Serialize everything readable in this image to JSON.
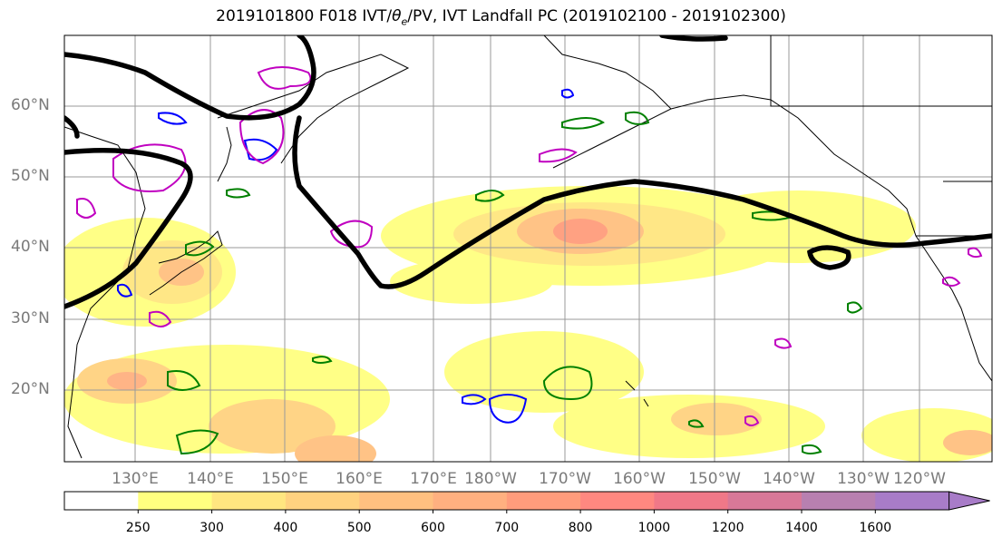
{
  "title": "2019101800 F018 IVT/θe/PV, IVT Landfall PC (2019102100 - 2019102300)",
  "map": {
    "lat_labels": [
      "60°N",
      "50°N",
      "40°N",
      "30°N",
      "20°N"
    ],
    "lon_labels": [
      "130°E",
      "140°E",
      "150°E",
      "160°E",
      "170°E",
      "180°W",
      "170°W",
      "160°W",
      "150°W",
      "140°W",
      "130°W",
      "120°W"
    ]
  },
  "colorbar": {
    "levels": [
      "250",
      "300",
      "400",
      "500",
      "600",
      "700",
      "800",
      "1000",
      "1200",
      "1400",
      "1600"
    ],
    "colors": [
      "#ffffff",
      "#ffff80",
      "#ffe680",
      "#ffd280",
      "#ffc080",
      "#ffb080",
      "#ff9c7c",
      "#ff8880",
      "#f07888",
      "#d87898",
      "#b880b0",
      "#a87cc8"
    ]
  },
  "legend_colors": {
    "ivt_contour": "#000000",
    "theta_e_pos": "#008000",
    "theta_e_neg": "#0000ff",
    "pv": "#c000c0"
  }
}
